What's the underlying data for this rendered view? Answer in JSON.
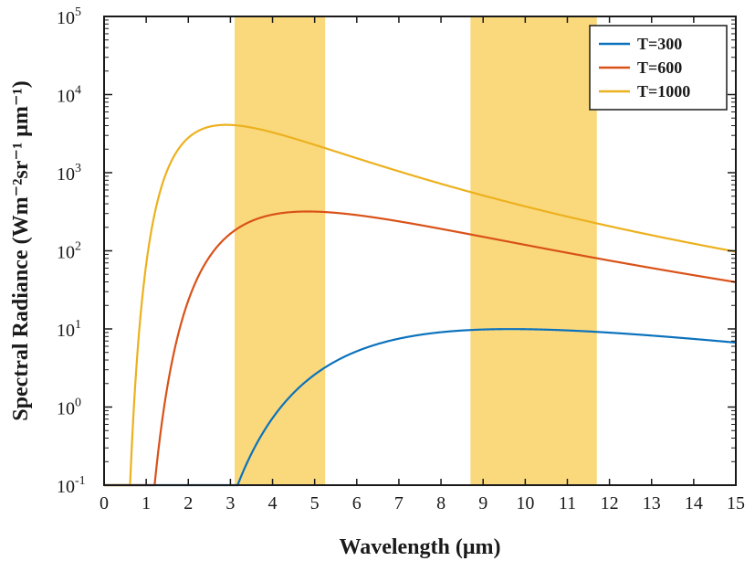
{
  "chart_data": {
    "type": "line",
    "y_scale": "log",
    "xlabel": "Wavelength (μm)",
    "ylabel": "Spectral Radiance (Wm⁻²sr⁻¹ μm⁻¹)",
    "xlim": [
      0,
      15
    ],
    "ylim": [
      0.1,
      100000
    ],
    "x_ticks": [
      "0",
      "1",
      "2",
      "3",
      "4",
      "5",
      "6",
      "7",
      "8",
      "9",
      "10",
      "11",
      "12",
      "13",
      "14",
      "15"
    ],
    "y_ticks": [
      {
        "value": 0.1,
        "base": "10",
        "exp": "-1"
      },
      {
        "value": 1,
        "base": "10",
        "exp": "0"
      },
      {
        "value": 10,
        "base": "10",
        "exp": "1"
      },
      {
        "value": 100,
        "base": "10",
        "exp": "2"
      },
      {
        "value": 1000,
        "base": "10",
        "exp": "3"
      },
      {
        "value": 10000,
        "base": "10",
        "exp": "4"
      },
      {
        "value": 100000,
        "base": "10",
        "exp": "5"
      }
    ],
    "grid": false,
    "legend_position": "top-right",
    "shaded_bands": [
      {
        "x_range": [
          3.1,
          5.25
        ],
        "color": "#fad97c"
      },
      {
        "x_range": [
          8.7,
          11.7
        ],
        "color": "#fad97c"
      }
    ],
    "series": [
      {
        "name": "T=300",
        "temperature": 300,
        "color": "#0c72bd"
      },
      {
        "name": "T=600",
        "temperature": 600,
        "color": "#d95219"
      },
      {
        "name": "T=1000",
        "temperature": 1000,
        "color": "#ecb11f"
      }
    ]
  }
}
